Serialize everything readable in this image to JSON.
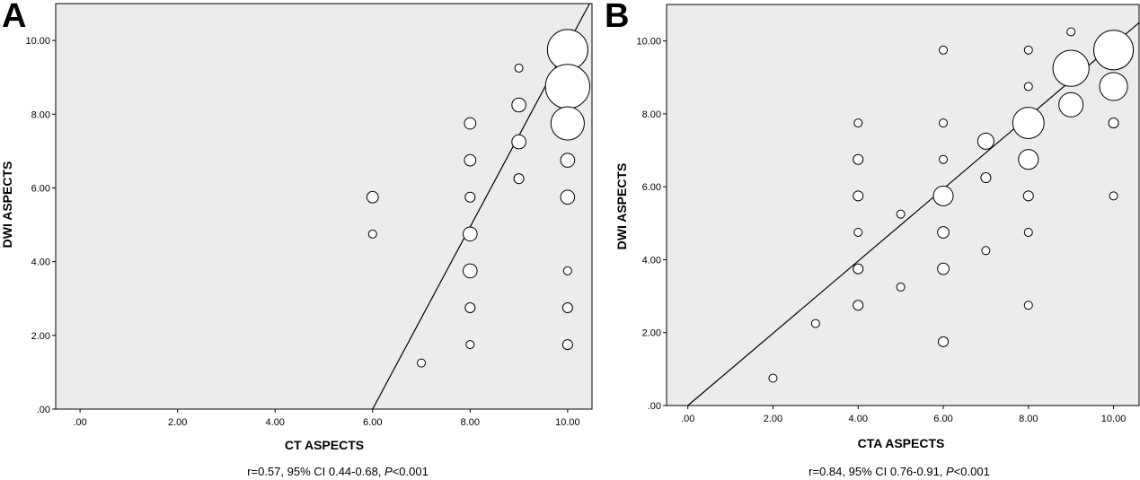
{
  "chart_data": [
    {
      "panel": "A",
      "type": "scatter",
      "xlabel": "CT ASPECTS",
      "ylabel": "DWI ASPECTS",
      "xlim": [
        -0.5,
        10.5
      ],
      "ylim": [
        0,
        11
      ],
      "xticks": [
        ".00",
        "2.00",
        "4.00",
        "6.00",
        "8.00",
        "10.00"
      ],
      "yticks": [
        ".00",
        "2.00",
        "4.00",
        "6.00",
        "8.00",
        "10.00"
      ],
      "grid": false,
      "marker": "hollow-circle-sized-by-frequency",
      "points": [
        {
          "x": 6,
          "y": 5.75,
          "size": 2
        },
        {
          "x": 6,
          "y": 4.75,
          "size": 1
        },
        {
          "x": 7,
          "y": 1.25,
          "size": 1
        },
        {
          "x": 8,
          "y": 7.75,
          "size": 2
        },
        {
          "x": 8,
          "y": 6.75,
          "size": 2
        },
        {
          "x": 8,
          "y": 5.75,
          "size": 1.5
        },
        {
          "x": 8,
          "y": 4.75,
          "size": 3
        },
        {
          "x": 8,
          "y": 3.75,
          "size": 3
        },
        {
          "x": 8,
          "y": 2.75,
          "size": 1.5
        },
        {
          "x": 8,
          "y": 1.75,
          "size": 1
        },
        {
          "x": 9,
          "y": 9.25,
          "size": 1
        },
        {
          "x": 9,
          "y": 8.25,
          "size": 3
        },
        {
          "x": 9,
          "y": 7.25,
          "size": 3
        },
        {
          "x": 9,
          "y": 6.25,
          "size": 1.5
        },
        {
          "x": 10,
          "y": 9.75,
          "size": 25
        },
        {
          "x": 10,
          "y": 8.75,
          "size": 30
        },
        {
          "x": 10,
          "y": 7.75,
          "size": 17
        },
        {
          "x": 10,
          "y": 6.75,
          "size": 3
        },
        {
          "x": 10,
          "y": 5.75,
          "size": 3
        },
        {
          "x": 10,
          "y": 3.75,
          "size": 1
        },
        {
          "x": 10,
          "y": 2.75,
          "size": 1.5
        },
        {
          "x": 10,
          "y": 1.75,
          "size": 1.5
        }
      ],
      "fit_line": {
        "x1": 6.0,
        "y1": 0.0,
        "x2": 10.45,
        "y2": 11.0
      },
      "caption": {
        "stat": "r=0.57, 95% CI  0.44-0.68,  ",
        "p_label": "P",
        "p_value": "<0.001"
      }
    },
    {
      "panel": "B",
      "type": "scatter",
      "xlabel": "CTA ASPECTS",
      "ylabel": "DWI ASPECTS",
      "xlim": [
        -0.5,
        10.6
      ],
      "ylim": [
        0,
        11
      ],
      "xticks": [
        ".00",
        "2.00",
        "4.00",
        "6.00",
        "8.00",
        "10.00"
      ],
      "yticks": [
        ".00",
        "2.00",
        "4.00",
        "6.00",
        "8.00",
        "10.00"
      ],
      "grid": false,
      "marker": "hollow-circle-sized-by-frequency",
      "points": [
        {
          "x": 2,
          "y": 0.75,
          "size": 1
        },
        {
          "x": 3,
          "y": 2.25,
          "size": 1
        },
        {
          "x": 4,
          "y": 7.75,
          "size": 1
        },
        {
          "x": 4,
          "y": 6.75,
          "size": 1.5
        },
        {
          "x": 4,
          "y": 5.75,
          "size": 1.5
        },
        {
          "x": 4,
          "y": 4.75,
          "size": 1
        },
        {
          "x": 4,
          "y": 3.75,
          "size": 1.5
        },
        {
          "x": 4,
          "y": 2.75,
          "size": 1.5
        },
        {
          "x": 5,
          "y": 5.25,
          "size": 1
        },
        {
          "x": 5,
          "y": 3.25,
          "size": 1
        },
        {
          "x": 6,
          "y": 9.75,
          "size": 1
        },
        {
          "x": 6,
          "y": 7.75,
          "size": 1
        },
        {
          "x": 6,
          "y": 6.75,
          "size": 1
        },
        {
          "x": 6,
          "y": 5.75,
          "size": 6
        },
        {
          "x": 6,
          "y": 4.75,
          "size": 2
        },
        {
          "x": 6,
          "y": 3.75,
          "size": 2
        },
        {
          "x": 6,
          "y": 1.75,
          "size": 1.5
        },
        {
          "x": 7,
          "y": 7.25,
          "size": 4
        },
        {
          "x": 7,
          "y": 6.25,
          "size": 1.5
        },
        {
          "x": 7,
          "y": 4.25,
          "size": 1
        },
        {
          "x": 8,
          "y": 9.75,
          "size": 1
        },
        {
          "x": 8,
          "y": 8.75,
          "size": 1
        },
        {
          "x": 8,
          "y": 7.75,
          "size": 15
        },
        {
          "x": 8,
          "y": 6.75,
          "size": 6
        },
        {
          "x": 8,
          "y": 5.75,
          "size": 1.5
        },
        {
          "x": 8,
          "y": 4.75,
          "size": 1
        },
        {
          "x": 8,
          "y": 2.75,
          "size": 1
        },
        {
          "x": 9,
          "y": 10.25,
          "size": 1
        },
        {
          "x": 9,
          "y": 9.25,
          "size": 20
        },
        {
          "x": 9,
          "y": 8.25,
          "size": 9
        },
        {
          "x": 10,
          "y": 9.75,
          "size": 24
        },
        {
          "x": 10,
          "y": 8.75,
          "size": 12
        },
        {
          "x": 10,
          "y": 7.75,
          "size": 1.5
        },
        {
          "x": 10,
          "y": 5.75,
          "size": 1
        }
      ],
      "fit_line": {
        "x1": 0.0,
        "y1": 0.0,
        "x2": 10.6,
        "y2": 10.5
      },
      "caption": {
        "stat": "r=0.84, 95% CI  0.76-0.91,  ",
        "p_label": "P",
        "p_value": "<0.001"
      }
    }
  ],
  "colors": {
    "plot_bg": "#ececec",
    "frame": "#000000",
    "marker_fill": "#ffffff",
    "marker_stroke": "#000000"
  }
}
